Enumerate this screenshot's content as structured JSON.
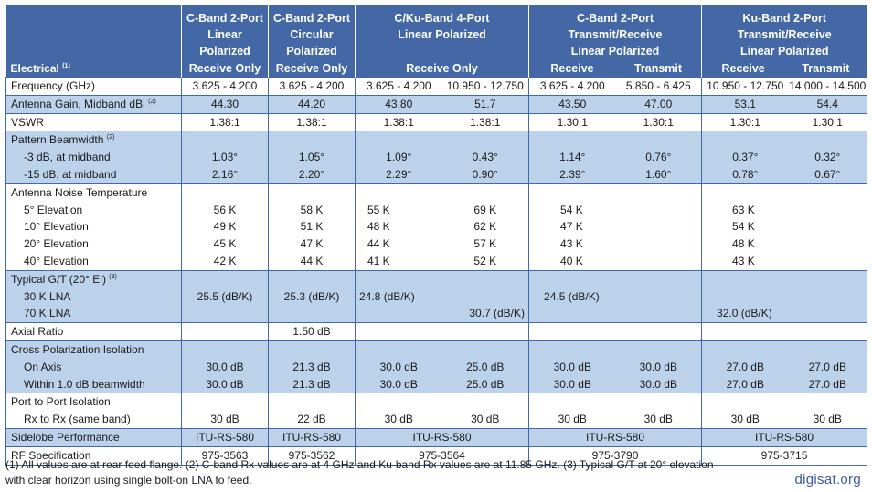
{
  "header": {
    "stub_label": "Electrical",
    "stub_sup": "(1)",
    "groups": [
      {
        "lines": [
          "C-Band 2-Port",
          "Linear",
          "Polarized"
        ],
        "sub": [
          "Receive Only"
        ]
      },
      {
        "lines": [
          "C-Band 2-Port",
          "Circular",
          "Polarized"
        ],
        "sub": [
          "Receive Only"
        ]
      },
      {
        "lines": [
          "C/Ku-Band 4-Port",
          "Linear Polarized"
        ],
        "sub": [
          "Receive Only"
        ]
      },
      {
        "lines": [
          "C-Band 2-Port",
          "Transmit/Receive",
          "Linear Polarized"
        ],
        "sub": [
          "Receive",
          "Transmit"
        ]
      },
      {
        "lines": [
          "Ku-Band 2-Port",
          "Transmit/Receive",
          "Linear Polarized"
        ],
        "sub": [
          "Receive",
          "Transmit"
        ]
      }
    ]
  },
  "rows": {
    "frequency": {
      "label": "Frequency (GHz)",
      "values": [
        "3.625 - 4.200",
        "3.625 - 4.200",
        "3.625 - 4.200",
        "10.950 - 12.750",
        "3.625 - 4.200",
        "5.850 - 6.425",
        "10.950 - 12.750",
        "14.000 - 14.500"
      ]
    },
    "gain": {
      "label": "Antenna Gain, Midband dBi",
      "sup": "(2)",
      "values": [
        "44.30",
        "44.20",
        "43.80",
        "51.7",
        "43.50",
        "47.00",
        "53.1",
        "54.4"
      ]
    },
    "vswr": {
      "label": "VSWR",
      "values": [
        "1.38:1",
        "1.38:1",
        "1.38:1",
        "1.38:1",
        "1.30:1",
        "1.30:1",
        "1.30:1",
        "1.30:1"
      ]
    },
    "beamwidth": {
      "label": "Pattern Beamwidth",
      "sup": "(2)",
      "sub_labels": [
        "-3 dB, at midband",
        "-15 dB, at midband"
      ],
      "values": [
        [
          "1.03°",
          "2.16°"
        ],
        [
          "1.05°",
          "2.20°"
        ],
        [
          "1.09°",
          "2.29°"
        ],
        [
          "0.43°",
          "0.90°"
        ],
        [
          "1.14°",
          "2.39°"
        ],
        [
          "0.76°",
          "1.60°"
        ],
        [
          "0.37°",
          "0.78°"
        ],
        [
          "0.32°",
          "0.67°"
        ]
      ]
    },
    "noise": {
      "label": "Antenna Noise Temperature",
      "sub_labels": [
        "5° Elevation",
        "10° Elevation",
        "20° Elevation",
        "40° Elevation"
      ],
      "values": [
        [
          "56 K",
          "49 K",
          "45 K",
          "42 K"
        ],
        [
          "58 K",
          "51 K",
          "47 K",
          "44 K"
        ],
        [
          "55 K",
          "48 K",
          "44 K",
          "41 K"
        ],
        [
          "69 K",
          "62 K",
          "57 K",
          "52 K"
        ],
        [
          "54 K",
          "47 K",
          "43 K",
          "40 K"
        ],
        [
          "",
          "",
          "",
          ""
        ],
        [
          "63 K",
          "54 K",
          "48 K",
          "43 K"
        ],
        [
          "",
          "",
          "",
          ""
        ]
      ]
    },
    "gt": {
      "label": "Typical G/T (20° El)",
      "sup": "(3)",
      "sub_labels": [
        "30 K LNA",
        "70 K LNA"
      ],
      "values": [
        [
          "25.5 (dB/K)",
          ""
        ],
        [
          "25.3 (dB/K)",
          ""
        ],
        [
          "24.8 (dB/K)",
          ""
        ],
        [
          "",
          "30.7 (dB/K)"
        ],
        [
          "24.5 (dB/K)",
          ""
        ],
        [
          "",
          ""
        ],
        [
          "",
          "32.0 (dB/K)"
        ],
        [
          "",
          ""
        ]
      ]
    },
    "axial": {
      "label": "Axial Ratio",
      "values": [
        "",
        "1.50 dB",
        "",
        "",
        "",
        "",
        "",
        ""
      ]
    },
    "xpol": {
      "label": "Cross Polarization Isolation",
      "sub_labels": [
        "On Axis",
        "Within 1.0 dB beamwidth"
      ],
      "values": [
        [
          "30.0 dB",
          "30.0 dB"
        ],
        [
          "21.3 dB",
          "21.3 dB"
        ],
        [
          "30.0 dB",
          "30.0 dB"
        ],
        [
          "25.0 dB",
          "25.0 dB"
        ],
        [
          "30.0 dB",
          "30.0 dB"
        ],
        [
          "30.0 dB",
          "30.0 dB"
        ],
        [
          "27.0 dB",
          "27.0 dB"
        ],
        [
          "27.0 dB",
          "27.0 dB"
        ]
      ]
    },
    "p2p": {
      "label": "Port to Port Isolation",
      "sub_labels": [
        "Rx to Rx (same band)"
      ],
      "values": [
        [
          "30 dB"
        ],
        [
          "22 dB"
        ],
        [
          "30 dB"
        ],
        [
          "30 dB"
        ],
        [
          "30 dB"
        ],
        [
          "30 dB"
        ],
        [
          "30 dB"
        ],
        [
          "30 dB"
        ]
      ]
    },
    "sidelobe": {
      "label": "Sidelobe Performance",
      "values": [
        "ITU-RS-580",
        "ITU-RS-580",
        "ITU-RS-580",
        "ITU-RS-580",
        "ITU-RS-580"
      ]
    },
    "rfspec": {
      "label": "RF Specification",
      "values": [
        "975-3563",
        "975-3562",
        "975-3564",
        "975-3790",
        "975-3715"
      ]
    }
  },
  "footnote": "(1) All values are at rear feed flange. (2) C-band Rx values are at 4 GHz and Ku-band Rx values are at 11.85 GHz. (3) Typical G/T at 20° elevation with clear horizon using single bolt-on LNA to feed.",
  "brand": "digisat.org"
}
